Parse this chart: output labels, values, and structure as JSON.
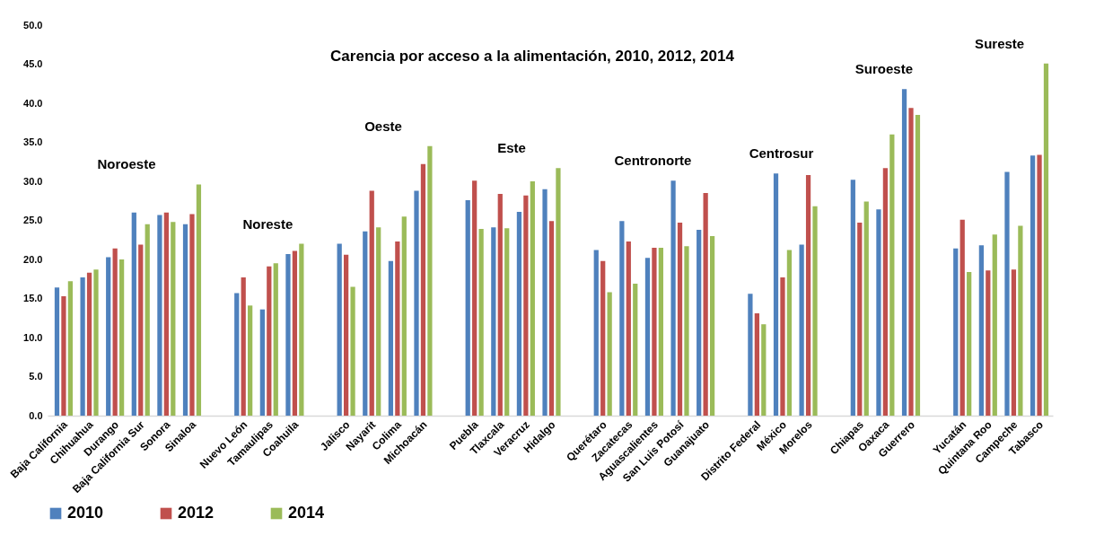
{
  "chart_data": {
    "type": "bar",
    "title": "Carencia por acceso a la alimentación, 2010, 2012, 2014",
    "categories": [
      "Baja California",
      "Chihuahua",
      "Durango",
      "Baja California Sur",
      "Sonora",
      "Sinaloa",
      null,
      "Nuevo León",
      "Tamaulipas",
      "Coahuila",
      null,
      "Jalisco",
      "Nayarit",
      "Colima",
      "Michoacán",
      null,
      "Puebla",
      "Tlaxcala",
      "Veracruz",
      "Hidalgo",
      null,
      "Querétaro",
      "Zacatecas",
      "Aguascalientes",
      "San Luis Potosí",
      "Guanajuato",
      null,
      "Distrito Federal",
      "México",
      "Morelos",
      null,
      "Chiapas",
      "Oaxaca",
      "Guerrero",
      null,
      "Yucatán",
      "Quintana Roo",
      "Campeche",
      "Tabasco"
    ],
    "series": [
      {
        "name": "2010",
        "color": "#4f81bd",
        "values": [
          16.4,
          17.7,
          20.3,
          26.0,
          25.7,
          24.5,
          null,
          15.7,
          13.6,
          20.7,
          null,
          22.0,
          23.6,
          19.8,
          28.8,
          null,
          27.6,
          24.1,
          26.1,
          29.0,
          null,
          21.2,
          24.9,
          20.2,
          30.1,
          23.8,
          null,
          15.6,
          31.0,
          21.9,
          null,
          30.2,
          26.4,
          41.8,
          null,
          21.4,
          21.8,
          31.2,
          33.3
        ]
      },
      {
        "name": "2012",
        "color": "#c0504d",
        "values": [
          15.3,
          18.3,
          21.4,
          21.9,
          26.0,
          25.8,
          null,
          17.7,
          19.1,
          21.1,
          null,
          20.6,
          28.8,
          22.3,
          32.2,
          null,
          30.1,
          28.4,
          28.2,
          24.9,
          null,
          19.8,
          22.3,
          21.5,
          24.7,
          28.5,
          null,
          13.1,
          17.7,
          30.8,
          null,
          24.7,
          31.7,
          39.4,
          null,
          25.1,
          18.6,
          18.7,
          33.4
        ]
      },
      {
        "name": "2014",
        "color": "#9bbb59",
        "values": [
          17.2,
          18.7,
          20.0,
          24.5,
          24.8,
          29.6,
          null,
          14.1,
          19.5,
          22.0,
          null,
          16.5,
          24.1,
          25.5,
          34.5,
          null,
          23.9,
          24.0,
          30.0,
          31.7,
          null,
          15.8,
          16.9,
          21.5,
          21.7,
          23.0,
          null,
          11.7,
          21.2,
          26.8,
          null,
          27.4,
          36.0,
          38.5,
          null,
          18.4,
          23.2,
          24.3,
          45.1
        ]
      }
    ],
    "ylim": [
      0,
      50
    ],
    "yticks": [
      {
        "value": 0,
        "label": "0.0"
      },
      {
        "value": 5,
        "label": "5.0"
      },
      {
        "value": 10,
        "label": "10.0"
      },
      {
        "value": 15,
        "label": "15.0"
      },
      {
        "value": 20,
        "label": "20.0"
      },
      {
        "value": 25,
        "label": "25.0"
      },
      {
        "value": 30,
        "label": "30.0"
      },
      {
        "value": 35,
        "label": "35.0"
      },
      {
        "value": 40,
        "label": "40.0"
      },
      {
        "value": 45,
        "label": "45.0"
      },
      {
        "value": 50,
        "label": "50.0"
      }
    ],
    "grid": false,
    "legend": "bottom",
    "annotations": [
      "Noroeste",
      "Noreste",
      "Oeste",
      "Este",
      "Centronorte",
      "Centrosur",
      "Suroeste",
      "Sureste"
    ]
  }
}
